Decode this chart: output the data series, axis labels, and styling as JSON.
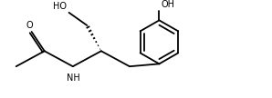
{
  "bg_color": "#ffffff",
  "line_color": "#000000",
  "line_width": 1.3,
  "font_size": 7.0,
  "figsize": [
    2.98,
    1.08
  ],
  "dpi": 100,
  "xlim": [
    0,
    10.5
  ],
  "ylim": [
    0,
    3.6
  ]
}
